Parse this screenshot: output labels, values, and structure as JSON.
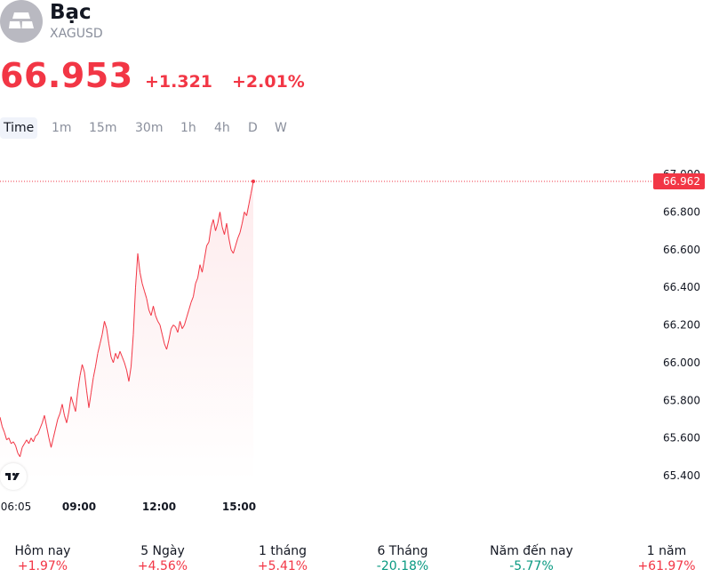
{
  "header": {
    "title": "Bạc",
    "symbol": "XAGUSD",
    "icon": "silver-bars-icon",
    "price": "66.953",
    "change_abs": "+1.321",
    "change_pct": "+2.01%"
  },
  "tabs": [
    {
      "label": "Time",
      "active": true
    },
    {
      "label": "1m"
    },
    {
      "label": "15m"
    },
    {
      "label": "30m"
    },
    {
      "label": "1h"
    },
    {
      "label": "4h"
    },
    {
      "label": "D"
    },
    {
      "label": "W"
    }
  ],
  "chart_data": {
    "type": "area",
    "line_color": "#f23645",
    "y_ticks": [
      "67.000",
      "66.800",
      "66.600",
      "66.400",
      "66.200",
      "66.000",
      "65.800",
      "65.600",
      "65.400"
    ],
    "y_tick_values": [
      67.0,
      66.8,
      66.6,
      66.4,
      66.2,
      66.0,
      65.8,
      65.6,
      65.4
    ],
    "ylim": [
      65.35,
      67.05
    ],
    "x_ticks": [
      "06:05",
      "09:00",
      "12:00",
      "15:00"
    ],
    "last_value_label": "66.962",
    "last_value": 66.962,
    "series": [
      {
        "values": [
          65.71,
          65.66,
          65.63,
          65.59,
          65.6,
          65.57,
          65.58,
          65.56,
          65.52,
          65.5,
          65.55,
          65.57,
          65.59,
          65.57,
          65.6,
          65.58,
          65.61,
          65.62,
          65.65,
          65.68,
          65.72,
          65.66,
          65.6,
          65.55,
          65.6,
          65.65,
          65.7,
          65.73,
          65.78,
          65.72,
          65.68,
          65.74,
          65.82,
          65.78,
          65.74,
          65.85,
          65.93,
          65.99,
          65.95,
          65.85,
          65.76,
          65.84,
          65.92,
          65.98,
          66.05,
          66.1,
          66.15,
          66.22,
          66.18,
          66.1,
          66.03,
          66.0,
          66.05,
          66.02,
          66.06,
          66.03,
          66.0,
          65.96,
          65.9,
          65.98,
          66.15,
          66.4,
          66.58,
          66.48,
          66.42,
          66.38,
          66.34,
          66.28,
          66.25,
          66.3,
          66.25,
          66.22,
          66.2,
          66.15,
          66.1,
          66.07,
          66.12,
          66.18,
          66.2,
          66.19,
          66.16,
          66.22,
          66.18,
          66.2,
          66.24,
          66.28,
          66.32,
          66.35,
          66.42,
          66.45,
          66.52,
          66.48,
          66.55,
          66.62,
          66.64,
          66.72,
          66.76,
          66.7,
          66.74,
          66.8,
          66.72,
          66.68,
          66.74,
          66.66,
          66.6,
          66.58,
          66.62,
          66.66,
          66.69,
          66.74,
          66.8,
          66.78,
          66.84,
          66.9,
          66.962
        ]
      }
    ]
  },
  "stats": [
    {
      "label": "Hôm nay",
      "value": "+1.97%",
      "dir": "pos"
    },
    {
      "label": "5 Ngày",
      "value": "+4.56%",
      "dir": "pos"
    },
    {
      "label": "1 tháng",
      "value": "+5.41%",
      "dir": "pos"
    },
    {
      "label": "6 Tháng",
      "value": "-20.18%",
      "dir": "neg"
    },
    {
      "label": "Năm đến nay",
      "value": "-5.77%",
      "dir": "neg"
    },
    {
      "label": "1 năm",
      "value": "+61.97%",
      "dir": "pos"
    }
  ]
}
